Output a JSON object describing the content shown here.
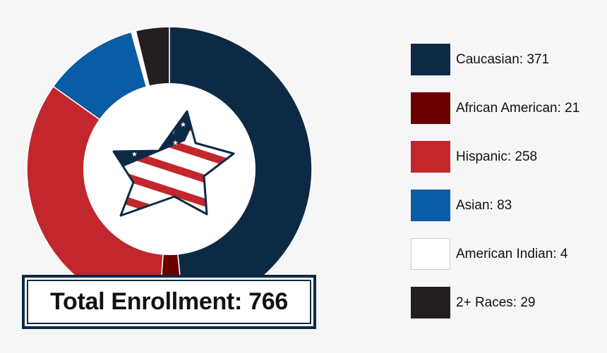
{
  "chart_data": {
    "type": "pie",
    "title": "",
    "categories": [
      "Caucasian",
      "African American",
      "Hispanic",
      "Asian",
      "American Indian",
      "2+ Races"
    ],
    "values": [
      371,
      21,
      258,
      83,
      4,
      29
    ],
    "colors": [
      "#0d2a45",
      "#6b0000",
      "#c1272d",
      "#0a5ca6",
      "#ffffff",
      "#231f20"
    ],
    "legend": {
      "placement": "right",
      "entries": [
        {
          "label": "Caucasian: 371",
          "color": "#0d2a45"
        },
        {
          "label": "African American: 21",
          "color": "#6b0000"
        },
        {
          "label": "Hispanic: 258",
          "color": "#c1272d"
        },
        {
          "label": "Asian: 83",
          "color": "#0a5ca6"
        },
        {
          "label": "American Indian: 4",
          "color": "#ffffff"
        },
        {
          "label": "2+ Races: 29",
          "color": "#231f20"
        }
      ]
    },
    "total_label": "Total Enrollment: 766",
    "center_icon": "american-flag-star-icon"
  }
}
